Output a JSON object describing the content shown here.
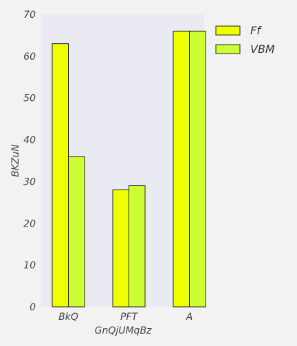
{
  "chart_data": {
    "type": "bar",
    "categories": [
      "BkQ",
      "PFT",
      "A"
    ],
    "series": [
      {
        "name": "Ff",
        "values": [
          63,
          28,
          66
        ]
      },
      {
        "name": "VBM",
        "values": [
          36,
          29,
          66
        ]
      }
    ],
    "title": "",
    "xlabel": "GnQjUMqBz",
    "ylabel": "BKZuN",
    "ylim": [
      0,
      70
    ],
    "yticks": [
      0,
      10,
      20,
      30,
      40,
      50,
      60,
      70
    ],
    "grid": false,
    "legend": "outside-top-right",
    "colors": {
      "Ff": "#eeff00",
      "VBM": "#ccff33",
      "plot_bg": "#eaeaf2",
      "edge": "#222222"
    }
  }
}
